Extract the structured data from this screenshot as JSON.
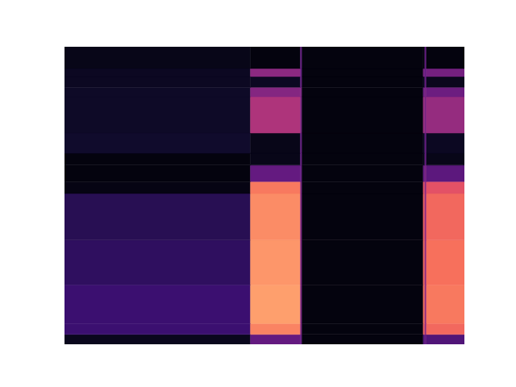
{
  "chart_data": {
    "type": "heatmap",
    "tick_labels": false,
    "xlim": [
      0,
      100
    ],
    "ylim": [
      0,
      100
    ],
    "zlim": [
      0,
      1
    ],
    "x_edges": [
      0,
      46.5,
      59,
      59.4,
      89.7,
      90.1,
      90.5,
      100
    ],
    "y_edges": [
      0,
      3.3,
      7,
      20,
      35,
      50.7,
      54.7,
      60.2,
      64.2,
      71,
      83.2,
      86.4,
      90,
      92.7,
      100
    ],
    "cells": [
      [
        0.05,
        0.3,
        0.3,
        0.02,
        0.25,
        0.3,
        0.25
      ],
      [
        0.2,
        0.74,
        0.35,
        0.02,
        0.66,
        0.4,
        0.68
      ],
      [
        0.2,
        0.8,
        0.35,
        0.02,
        0.7,
        0.4,
        0.72
      ],
      [
        0.17,
        0.78,
        0.35,
        0.02,
        0.68,
        0.4,
        0.7
      ],
      [
        0.15,
        0.76,
        0.35,
        0.02,
        0.66,
        0.4,
        0.68
      ],
      [
        0.03,
        0.72,
        0.35,
        0.02,
        0.62,
        0.4,
        0.62
      ],
      [
        0.02,
        0.3,
        0.3,
        0.02,
        0.3,
        0.35,
        0.28
      ],
      [
        0.02,
        0.04,
        0.3,
        0.02,
        0.04,
        0.3,
        0.04
      ],
      [
        0.08,
        0.04,
        0.3,
        0.02,
        0.06,
        0.3,
        0.06
      ],
      [
        0.07,
        0.48,
        0.35,
        0.02,
        0.42,
        0.35,
        0.42
      ],
      [
        0.07,
        0.38,
        0.35,
        0.02,
        0.32,
        0.35,
        0.32
      ],
      [
        0.06,
        0.06,
        0.3,
        0.02,
        0.05,
        0.3,
        0.05
      ],
      [
        0.06,
        0.4,
        0.3,
        0.02,
        0.34,
        0.3,
        0.34
      ],
      [
        0.04,
        0.02,
        0.3,
        0.02,
        0.02,
        0.3,
        0.02
      ]
    ]
  }
}
